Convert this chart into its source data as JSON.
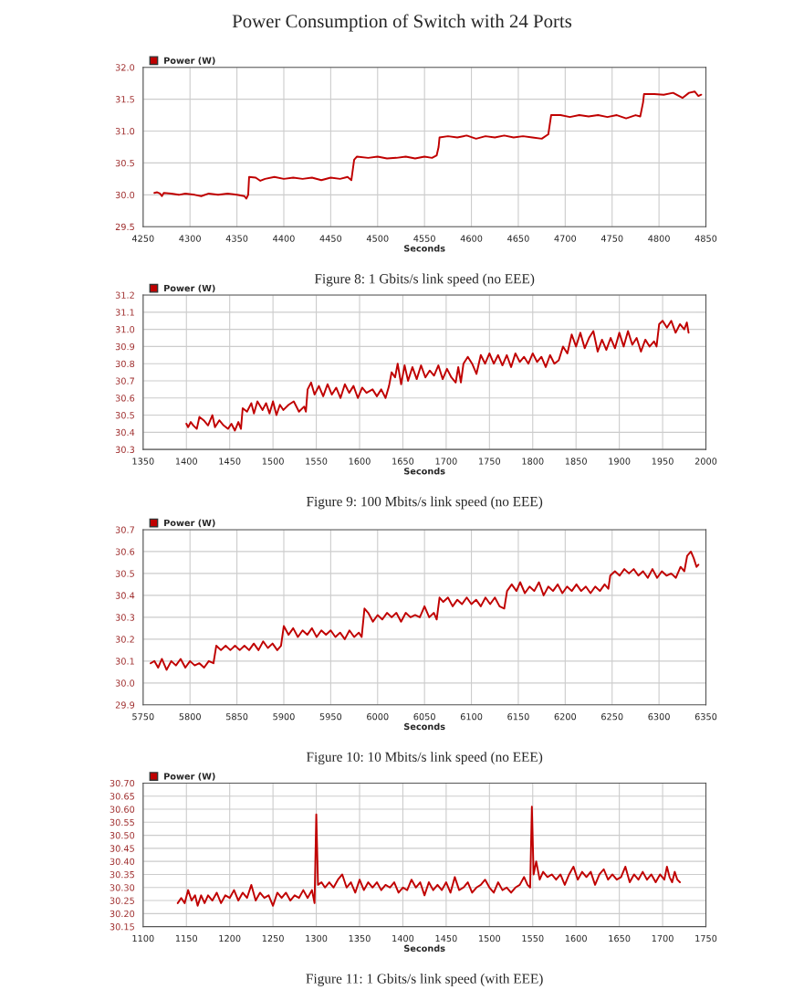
{
  "chart_data": [
    {
      "type": "line",
      "title": "Power Consumption of Switch with 24 Ports",
      "xlabel": "Seconds",
      "annotations": [
        "Figure 8: 1 Gbits/s link speed (no EEE)"
      ],
      "xlim": [
        4250,
        4850
      ],
      "xticks": [
        4250,
        4300,
        4350,
        4400,
        4450,
        4500,
        4550,
        4600,
        4650,
        4700,
        4750,
        4800,
        4850
      ],
      "ylim": [
        29.5,
        32.0
      ],
      "yticks": [
        {
          "value": 29.5,
          "label": "29.5"
        },
        {
          "value": 30.0,
          "label": "30.0"
        },
        {
          "value": 30.5,
          "label": "30.5"
        },
        {
          "value": 31.0,
          "label": "31.0"
        },
        {
          "value": 31.5,
          "label": "31.5"
        },
        {
          "value": 32.0,
          "label": "32.0"
        }
      ],
      "grid": true,
      "legend": "top left",
      "series": [
        {
          "name": "Power (W)",
          "color": "#c00000",
          "x": [
            4262,
            4265,
            4268,
            4270,
            4272,
            4280,
            4288,
            4295,
            4305,
            4312,
            4320,
            4330,
            4340,
            4350,
            4358,
            4360,
            4362,
            4363,
            4370,
            4375,
            4380,
            4390,
            4400,
            4410,
            4420,
            4430,
            4440,
            4450,
            4460,
            4468,
            4472,
            4475,
            4478,
            4490,
            4500,
            4510,
            4520,
            4530,
            4540,
            4550,
            4558,
            4563,
            4565,
            4566,
            4575,
            4585,
            4595,
            4605,
            4615,
            4625,
            4635,
            4645,
            4655,
            4665,
            4675,
            4682,
            4685,
            4695,
            4705,
            4715,
            4725,
            4735,
            4745,
            4755,
            4765,
            4775,
            4780,
            4783,
            4784,
            4795,
            4805,
            4815,
            4825,
            4832,
            4838,
            4842,
            4845
          ],
          "values": [
            30.03,
            30.04,
            30.02,
            29.98,
            30.03,
            30.02,
            30.0,
            30.02,
            30.0,
            29.98,
            30.02,
            30.0,
            30.02,
            30.0,
            29.98,
            29.94,
            30.0,
            30.28,
            30.27,
            30.22,
            30.25,
            30.28,
            30.25,
            30.27,
            30.25,
            30.27,
            30.23,
            30.27,
            30.25,
            30.28,
            30.23,
            30.55,
            30.6,
            30.58,
            30.6,
            30.57,
            30.58,
            30.6,
            30.57,
            30.6,
            30.58,
            30.62,
            30.75,
            30.9,
            30.92,
            30.9,
            30.93,
            30.88,
            30.92,
            30.9,
            30.93,
            30.9,
            30.92,
            30.9,
            30.88,
            30.95,
            31.25,
            31.25,
            31.22,
            31.25,
            31.23,
            31.25,
            31.22,
            31.25,
            31.2,
            31.25,
            31.23,
            31.45,
            31.58,
            31.58,
            31.57,
            31.6,
            31.52,
            31.6,
            31.62,
            31.55,
            31.57
          ]
        }
      ]
    },
    {
      "type": "line",
      "xlabel": "Seconds",
      "annotations": [
        "Figure 9: 100 Mbits/s link speed (no EEE)"
      ],
      "xlim": [
        1350,
        2000
      ],
      "xticks": [
        1350,
        1400,
        1450,
        1500,
        1550,
        1600,
        1650,
        1700,
        1750,
        1800,
        1850,
        1900,
        1950,
        2000
      ],
      "ylim": [
        30.3,
        31.2
      ],
      "yticks": [
        30.3,
        30.4,
        30.5,
        30.6,
        30.7,
        30.8,
        30.9,
        {
          "value": 31.0,
          "label": "31.0"
        },
        31.1,
        31.2
      ],
      "grid": true,
      "legend": "top left",
      "series": [
        {
          "name": "Power (W)",
          "color": "#c00000",
          "x": [
            1400,
            1402,
            1405,
            1408,
            1412,
            1415,
            1420,
            1425,
            1430,
            1433,
            1438,
            1443,
            1448,
            1452,
            1456,
            1460,
            1463,
            1465,
            1470,
            1475,
            1478,
            1482,
            1488,
            1492,
            1496,
            1500,
            1504,
            1508,
            1512,
            1518,
            1524,
            1530,
            1536,
            1538,
            1540,
            1544,
            1548,
            1553,
            1558,
            1563,
            1568,
            1573,
            1578,
            1583,
            1588,
            1593,
            1598,
            1603,
            1608,
            1615,
            1620,
            1625,
            1630,
            1634,
            1637,
            1641,
            1644,
            1648,
            1652,
            1656,
            1661,
            1666,
            1671,
            1676,
            1681,
            1686,
            1691,
            1696,
            1701,
            1706,
            1711,
            1714,
            1717,
            1720,
            1725,
            1730,
            1735,
            1740,
            1745,
            1750,
            1755,
            1760,
            1765,
            1770,
            1775,
            1780,
            1785,
            1790,
            1795,
            1800,
            1805,
            1810,
            1815,
            1820,
            1825,
            1830,
            1835,
            1840,
            1845,
            1850,
            1855,
            1860,
            1865,
            1870,
            1875,
            1880,
            1885,
            1890,
            1895,
            1900,
            1905,
            1910,
            1915,
            1920,
            1925,
            1930,
            1935,
            1940,
            1943,
            1946,
            1950,
            1955,
            1960,
            1965,
            1970,
            1975,
            1978,
            1980
          ],
          "values": [
            30.45,
            30.43,
            30.46,
            30.44,
            30.42,
            30.49,
            30.47,
            30.44,
            30.5,
            30.43,
            30.47,
            30.44,
            30.42,
            30.45,
            30.41,
            30.46,
            30.42,
            30.54,
            30.52,
            30.57,
            30.51,
            30.58,
            30.53,
            30.57,
            30.51,
            30.58,
            30.5,
            30.56,
            30.53,
            30.56,
            30.58,
            30.52,
            30.55,
            30.52,
            30.65,
            30.69,
            30.62,
            30.67,
            30.61,
            30.68,
            30.62,
            30.66,
            30.6,
            30.68,
            30.63,
            30.67,
            30.6,
            30.66,
            30.63,
            30.65,
            30.61,
            30.65,
            30.6,
            30.67,
            30.75,
            30.72,
            30.8,
            30.68,
            30.79,
            30.7,
            30.78,
            30.71,
            30.79,
            30.72,
            30.76,
            30.73,
            30.79,
            30.71,
            30.77,
            30.72,
            30.69,
            30.78,
            30.69,
            30.8,
            30.84,
            30.8,
            30.74,
            30.85,
            30.8,
            30.86,
            30.8,
            30.85,
            30.79,
            30.85,
            30.78,
            30.86,
            30.81,
            30.84,
            30.8,
            30.86,
            30.81,
            30.84,
            30.78,
            30.85,
            30.8,
            30.82,
            30.9,
            30.86,
            30.97,
            30.9,
            30.98,
            30.89,
            30.95,
            30.99,
            30.87,
            30.94,
            30.88,
            30.95,
            30.89,
            30.98,
            30.9,
            30.99,
            30.91,
            30.95,
            30.87,
            30.94,
            30.9,
            30.93,
            30.9,
            31.03,
            31.05,
            31.01,
            31.05,
            30.98,
            31.03,
            31.0,
            31.04,
            30.98
          ]
        }
      ]
    },
    {
      "type": "line",
      "xlabel": "Seconds",
      "annotations": [
        "Figure 10: 10 Mbits/s link speed (no EEE)"
      ],
      "xlim": [
        5750,
        6350
      ],
      "xticks": [
        5750,
        5800,
        5850,
        5900,
        5950,
        6000,
        6050,
        6100,
        6150,
        6200,
        6250,
        6300,
        6350
      ],
      "ylim": [
        29.9,
        30.7
      ],
      "yticks": [
        29.9,
        {
          "value": 30.0,
          "label": "30.0"
        },
        30.1,
        30.2,
        30.3,
        30.4,
        30.5,
        30.6,
        30.7
      ],
      "grid": true,
      "legend": "top left",
      "series": [
        {
          "name": "Power (W)",
          "color": "#c00000",
          "x": [
            5758,
            5762,
            5766,
            5770,
            5775,
            5780,
            5785,
            5790,
            5795,
            5800,
            5805,
            5810,
            5815,
            5820,
            5825,
            5828,
            5833,
            5838,
            5843,
            5848,
            5853,
            5858,
            5863,
            5868,
            5873,
            5878,
            5883,
            5888,
            5893,
            5897,
            5900,
            5905,
            5910,
            5915,
            5920,
            5925,
            5930,
            5935,
            5940,
            5945,
            5950,
            5955,
            5960,
            5965,
            5970,
            5975,
            5980,
            5983,
            5986,
            5990,
            5995,
            6000,
            6005,
            6010,
            6015,
            6020,
            6025,
            6030,
            6035,
            6040,
            6045,
            6050,
            6055,
            6060,
            6063,
            6066,
            6070,
            6075,
            6080,
            6085,
            6090,
            6095,
            6100,
            6105,
            6110,
            6115,
            6120,
            6125,
            6130,
            6135,
            6138,
            6143,
            6148,
            6152,
            6157,
            6162,
            6167,
            6172,
            6177,
            6182,
            6187,
            6192,
            6197,
            6202,
            6207,
            6212,
            6217,
            6222,
            6227,
            6232,
            6237,
            6242,
            6246,
            6248,
            6253,
            6258,
            6263,
            6268,
            6273,
            6278,
            6283,
            6288,
            6293,
            6298,
            6303,
            6308,
            6313,
            6318,
            6323,
            6327,
            6330,
            6334,
            6337,
            6340,
            6342
          ],
          "values": [
            30.09,
            30.1,
            30.07,
            30.11,
            30.06,
            30.1,
            30.08,
            30.11,
            30.07,
            30.1,
            30.08,
            30.09,
            30.07,
            30.1,
            30.09,
            30.17,
            30.15,
            30.17,
            30.15,
            30.17,
            30.15,
            30.17,
            30.15,
            30.18,
            30.15,
            30.19,
            30.16,
            30.18,
            30.15,
            30.17,
            30.26,
            30.22,
            30.25,
            30.21,
            30.24,
            30.22,
            30.25,
            30.21,
            30.24,
            30.22,
            30.24,
            30.21,
            30.23,
            30.2,
            30.24,
            30.21,
            30.23,
            30.21,
            30.34,
            30.32,
            30.28,
            30.31,
            30.29,
            30.32,
            30.3,
            30.32,
            30.28,
            30.32,
            30.3,
            30.31,
            30.3,
            30.35,
            30.3,
            30.32,
            30.29,
            30.39,
            30.37,
            30.39,
            30.35,
            30.38,
            30.36,
            30.39,
            30.36,
            30.38,
            30.35,
            30.39,
            30.36,
            30.39,
            30.35,
            30.34,
            30.42,
            30.45,
            30.42,
            30.46,
            30.41,
            30.44,
            30.42,
            30.46,
            30.4,
            30.44,
            30.42,
            30.45,
            30.41,
            30.44,
            30.42,
            30.45,
            30.42,
            30.44,
            30.41,
            30.44,
            30.42,
            30.45,
            30.43,
            30.49,
            30.51,
            30.49,
            30.52,
            30.5,
            30.52,
            30.49,
            30.51,
            30.48,
            30.52,
            30.48,
            30.51,
            30.49,
            30.5,
            30.48,
            30.53,
            30.51,
            30.58,
            30.6,
            30.57,
            30.53,
            30.54
          ]
        }
      ]
    },
    {
      "type": "line",
      "xlabel": "Seconds",
      "annotations": [
        "Figure 11: 1 Gbits/s link speed (with EEE)"
      ],
      "xlim": [
        1100,
        1750
      ],
      "xticks": [
        1100,
        1150,
        1200,
        1250,
        1300,
        1350,
        1400,
        1450,
        1500,
        1550,
        1600,
        1650,
        1700,
        1750
      ],
      "ylim": [
        30.15,
        30.7
      ],
      "yticks": [
        30.15,
        {
          "value": 30.2,
          "label": "30.20"
        },
        30.25,
        {
          "value": 30.3,
          "label": "30.30"
        },
        30.35,
        {
          "value": 30.4,
          "label": "30.40"
        },
        30.45,
        {
          "value": 30.5,
          "label": "30.50"
        },
        30.55,
        {
          "value": 30.6,
          "label": "30.60"
        },
        30.65,
        {
          "value": 30.7,
          "label": "30.70"
        }
      ],
      "grid": true,
      "legend": "top left",
      "series": [
        {
          "name": "Power (W)",
          "color": "#c00000",
          "x": [
            1140,
            1144,
            1148,
            1152,
            1156,
            1160,
            1163,
            1167,
            1171,
            1175,
            1180,
            1185,
            1190,
            1195,
            1200,
            1205,
            1210,
            1215,
            1220,
            1225,
            1230,
            1235,
            1240,
            1245,
            1250,
            1255,
            1260,
            1265,
            1270,
            1275,
            1280,
            1285,
            1290,
            1295,
            1298,
            1300,
            1302,
            1306,
            1310,
            1315,
            1320,
            1325,
            1330,
            1335,
            1340,
            1345,
            1350,
            1355,
            1360,
            1365,
            1370,
            1375,
            1380,
            1385,
            1390,
            1395,
            1400,
            1405,
            1410,
            1415,
            1420,
            1425,
            1430,
            1435,
            1440,
            1445,
            1450,
            1455,
            1460,
            1465,
            1470,
            1475,
            1480,
            1485,
            1490,
            1495,
            1500,
            1505,
            1510,
            1515,
            1520,
            1525,
            1530,
            1535,
            1540,
            1544,
            1547,
            1549,
            1551,
            1554,
            1558,
            1562,
            1567,
            1572,
            1577,
            1582,
            1587,
            1592,
            1597,
            1602,
            1607,
            1612,
            1617,
            1622,
            1627,
            1632,
            1637,
            1642,
            1647,
            1652,
            1657,
            1662,
            1667,
            1672,
            1677,
            1682,
            1687,
            1692,
            1697,
            1702,
            1705,
            1708,
            1711,
            1714,
            1717,
            1720
          ],
          "values": [
            30.24,
            30.26,
            30.24,
            30.29,
            30.25,
            30.27,
            30.23,
            30.27,
            30.24,
            30.27,
            30.25,
            30.28,
            30.24,
            30.27,
            30.26,
            30.29,
            30.25,
            30.28,
            30.26,
            30.31,
            30.25,
            30.28,
            30.26,
            30.27,
            30.23,
            30.28,
            30.26,
            30.28,
            30.25,
            30.27,
            30.26,
            30.29,
            30.26,
            30.29,
            30.24,
            30.58,
            30.31,
            30.32,
            30.3,
            30.32,
            30.3,
            30.33,
            30.35,
            30.3,
            30.32,
            30.28,
            30.33,
            30.29,
            30.32,
            30.3,
            30.32,
            30.29,
            30.31,
            30.3,
            30.32,
            30.28,
            30.3,
            30.29,
            30.33,
            30.3,
            30.32,
            30.27,
            30.32,
            30.29,
            30.31,
            30.29,
            30.32,
            30.28,
            30.34,
            30.29,
            30.3,
            30.32,
            30.28,
            30.3,
            30.31,
            30.33,
            30.3,
            30.28,
            30.32,
            30.29,
            30.3,
            30.28,
            30.3,
            30.31,
            30.34,
            30.31,
            30.3,
            30.61,
            30.35,
            30.4,
            30.33,
            30.36,
            30.34,
            30.35,
            30.33,
            30.35,
            30.31,
            30.35,
            30.38,
            30.33,
            30.36,
            30.34,
            30.36,
            30.31,
            30.35,
            30.37,
            30.33,
            30.35,
            30.33,
            30.34,
            30.38,
            30.32,
            30.35,
            30.33,
            30.36,
            30.33,
            30.35,
            30.32,
            30.35,
            30.33,
            30.38,
            30.34,
            30.32,
            30.36,
            30.33,
            30.32
          ]
        }
      ]
    }
  ]
}
